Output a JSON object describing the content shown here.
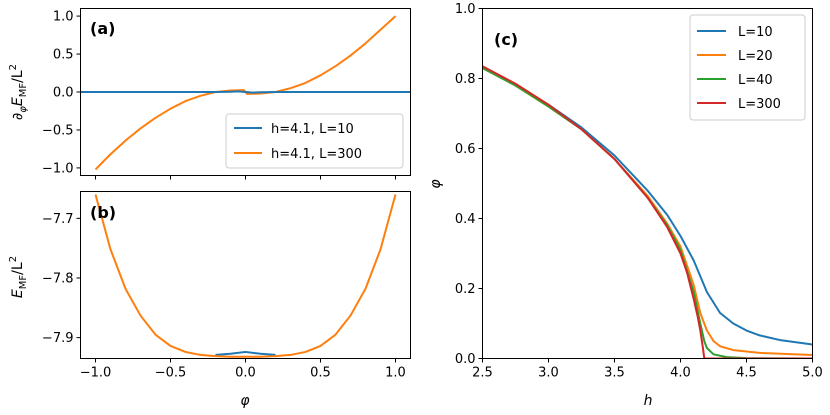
{
  "colors": {
    "blue": "#1f77b4",
    "orange": "#ff7f0e",
    "green": "#2ca02c",
    "red": "#d62728"
  },
  "chart_data": [
    {
      "panel": "a",
      "type": "line",
      "label": "(a)",
      "xlabel": "",
      "ylabel": "∂φE_MF/L²",
      "ylabel_parts": {
        "pre": "∂",
        "sub1": "φ",
        "mid": "E",
        "sub2": "MF",
        "post": "/L",
        "sup": "2"
      },
      "xlim": [
        -1.1,
        1.1
      ],
      "ylim": [
        -1.1,
        1.1
      ],
      "xticks": [
        -1.0,
        -0.5,
        0.0,
        0.5,
        1.0
      ],
      "xticklabels_visible": false,
      "yticks": [
        -1.0,
        -0.5,
        0.0,
        0.5,
        1.0
      ],
      "yticklabels": [
        "−1.0",
        "−0.5",
        "0.0",
        "0.5",
        "1.0"
      ],
      "legend_position": "lower-right",
      "series": [
        {
          "name": "h=4.1, L=10",
          "color_key": "blue",
          "x": [
            -1.0,
            -0.5,
            -0.2,
            -0.1,
            -0.05,
            0.0,
            0.05,
            0.1,
            0.2,
            0.5,
            1.0
          ],
          "y": [
            0.0,
            0.0,
            0.0,
            0.003,
            0.008,
            0.0,
            -0.008,
            -0.003,
            0.0,
            0.0,
            0.0
          ]
        },
        {
          "name": "h=4.1, L=300",
          "color_key": "orange",
          "x": [
            -1.0,
            -0.9,
            -0.8,
            -0.7,
            -0.6,
            -0.5,
            -0.4,
            -0.3,
            -0.2,
            -0.1,
            -0.01,
            0.01,
            0.1,
            0.2,
            0.3,
            0.4,
            0.5,
            0.6,
            0.7,
            0.8,
            0.9,
            1.0
          ],
          "y": [
            -1.02,
            -0.82,
            -0.64,
            -0.48,
            -0.34,
            -0.22,
            -0.12,
            -0.05,
            0.0,
            0.02,
            0.025,
            -0.025,
            -0.02,
            0.0,
            0.05,
            0.12,
            0.22,
            0.34,
            0.48,
            0.64,
            0.82,
            1.0
          ]
        }
      ]
    },
    {
      "panel": "b",
      "type": "line",
      "label": "(b)",
      "xlabel": "φ",
      "ylabel": "E_MF/L²",
      "ylabel_parts": {
        "pre": "",
        "sub1": "",
        "mid": "E",
        "sub2": "MF",
        "post": "/L",
        "sup": "2"
      },
      "xlim": [
        -1.1,
        1.1
      ],
      "ylim": [
        -7.935,
        -7.655
      ],
      "xticks": [
        -1.0,
        -0.5,
        0.0,
        0.5,
        1.0
      ],
      "xticklabels": [
        "−1.0",
        "−0.5",
        "0.0",
        "0.5",
        "1.0"
      ],
      "yticks": [
        -7.7,
        -7.8,
        -7.9
      ],
      "yticklabels": [
        "−7.7",
        "−7.8",
        "−7.9"
      ],
      "series": [
        {
          "name": "h=4.1, L=10",
          "color_key": "blue",
          "x": [
            -0.2,
            -0.1,
            0.0,
            0.1,
            0.2
          ],
          "y": [
            -7.929,
            -7.927,
            -7.924,
            -7.927,
            -7.929
          ]
        },
        {
          "name": "h=4.1, L=300",
          "color_key": "orange",
          "x": [
            -1.0,
            -0.9,
            -0.8,
            -0.7,
            -0.6,
            -0.5,
            -0.4,
            -0.3,
            -0.2,
            -0.1,
            0.0,
            0.1,
            0.2,
            0.3,
            0.4,
            0.5,
            0.6,
            0.7,
            0.8,
            0.9,
            1.0
          ],
          "y": [
            -7.66,
            -7.752,
            -7.818,
            -7.863,
            -7.895,
            -7.914,
            -7.924,
            -7.929,
            -7.931,
            -7.932,
            -7.932,
            -7.932,
            -7.931,
            -7.929,
            -7.924,
            -7.914,
            -7.895,
            -7.863,
            -7.818,
            -7.752,
            -7.66
          ]
        }
      ]
    },
    {
      "panel": "c",
      "type": "line",
      "label": "(c)",
      "xlabel": "h",
      "ylabel": "φ",
      "xlim": [
        2.5,
        5.0
      ],
      "ylim": [
        0.0,
        1.0
      ],
      "xticks": [
        2.5,
        3.0,
        3.5,
        4.0,
        4.5,
        5.0
      ],
      "xticklabels": [
        "2.5",
        "3.0",
        "3.5",
        "4.0",
        "4.5",
        "5.0"
      ],
      "yticks": [
        0.0,
        0.2,
        0.4,
        0.6,
        0.8,
        1.0
      ],
      "yticklabels": [
        "0.0",
        "0.2",
        "0.4",
        "0.6",
        "0.8",
        "1.0"
      ],
      "legend_position": "top-right",
      "series": [
        {
          "name": "L=10",
          "color_key": "blue",
          "x": [
            2.5,
            2.75,
            3.0,
            3.25,
            3.5,
            3.75,
            3.9,
            4.0,
            4.1,
            4.2,
            4.3,
            4.4,
            4.5,
            4.6,
            4.75,
            5.0
          ],
          "y": [
            0.83,
            0.78,
            0.725,
            0.66,
            0.58,
            0.48,
            0.41,
            0.35,
            0.28,
            0.19,
            0.13,
            0.1,
            0.08,
            0.066,
            0.053,
            0.04
          ]
        },
        {
          "name": "L=20",
          "color_key": "orange",
          "x": [
            2.5,
            2.75,
            3.0,
            3.25,
            3.5,
            3.75,
            3.9,
            4.0,
            4.1,
            4.15,
            4.2,
            4.25,
            4.3,
            4.4,
            4.6,
            5.0
          ],
          "y": [
            0.83,
            0.78,
            0.72,
            0.655,
            0.57,
            0.465,
            0.385,
            0.32,
            0.21,
            0.13,
            0.08,
            0.05,
            0.035,
            0.024,
            0.016,
            0.01
          ]
        },
        {
          "name": "L=40",
          "color_key": "green",
          "x": [
            2.5,
            2.75,
            3.0,
            3.25,
            3.5,
            3.75,
            3.9,
            4.0,
            4.1,
            4.15,
            4.18,
            4.2,
            4.25,
            4.35,
            4.5,
            5.0
          ],
          "y": [
            0.83,
            0.78,
            0.72,
            0.655,
            0.57,
            0.46,
            0.38,
            0.31,
            0.19,
            0.1,
            0.05,
            0.03,
            0.012,
            0.004,
            0.001,
            0.0
          ]
        },
        {
          "name": "L=300",
          "color_key": "red",
          "x": [
            2.5,
            2.75,
            3.0,
            3.25,
            3.5,
            3.75,
            3.9,
            4.0,
            4.05,
            4.1,
            4.13,
            4.15,
            4.17,
            4.18,
            4.2,
            5.0
          ],
          "y": [
            0.835,
            0.785,
            0.725,
            0.655,
            0.57,
            0.46,
            0.375,
            0.3,
            0.245,
            0.17,
            0.12,
            0.08,
            0.03,
            0.0,
            0.0,
            0.0
          ]
        }
      ]
    }
  ]
}
